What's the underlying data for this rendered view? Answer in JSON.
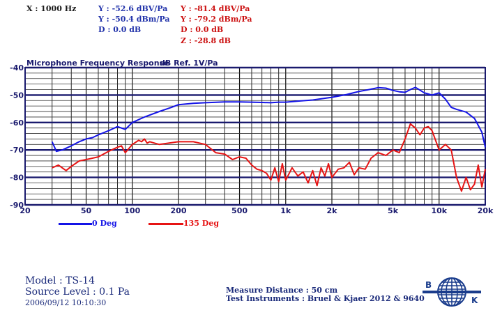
{
  "readouts": {
    "x": "X : 1000 Hz",
    "blue": [
      "Y : -52.6 dBV/Pa",
      "Y : -50.4 dBm/Pa",
      "D : 0.0 dB"
    ],
    "red": [
      "Y : -81.4 dBV/Pa",
      "Y : -79.2 dBm/Pa",
      "D : 0.0 dB",
      "Z : -28.8 dB"
    ]
  },
  "colors": {
    "blue": "#1414e6",
    "red": "#e61414",
    "frame": "#1a1a6e"
  },
  "chart_data": {
    "type": "line",
    "title": "Microphone Frequency Response",
    "ylabel": "dB Ref. 1V/Pa",
    "xlabel": "",
    "xscale": "log",
    "xlim": [
      20,
      20000
    ],
    "ylim": [
      -90,
      -40
    ],
    "x_ticks": [
      20,
      50,
      100,
      200,
      500,
      1000,
      2000,
      5000,
      10000,
      20000
    ],
    "x_tick_labels": [
      "20",
      "50",
      "100",
      "200",
      "500",
      "1k",
      "2k",
      "5k",
      "10k",
      "20k"
    ],
    "y_ticks": [
      -40,
      -50,
      -60,
      -70,
      -80,
      -90
    ],
    "y_tick_labels": [
      "-40",
      "-50",
      "-60",
      "-70",
      "-80",
      "-90"
    ],
    "grid": true,
    "legend_position": "bottom-left",
    "series": [
      {
        "name": "0 Deg",
        "color": "#1414e6",
        "x": [
          30,
          32,
          35,
          40,
          45,
          50,
          55,
          60,
          70,
          80,
          90,
          100,
          120,
          150,
          180,
          200,
          250,
          300,
          400,
          500,
          600,
          700,
          800,
          900,
          1000,
          1200,
          1500,
          2000,
          2500,
          3000,
          3500,
          4000,
          4500,
          5000,
          5500,
          6000,
          6500,
          7000,
          7500,
          8000,
          9000,
          10000,
          11000,
          12000,
          13000,
          15000,
          17000,
          19000,
          20000
        ],
        "y": [
          -67,
          -70.5,
          -70,
          -68.5,
          -67,
          -66,
          -65.5,
          -64.5,
          -63,
          -61.5,
          -62.5,
          -60,
          -58,
          -56,
          -54.5,
          -53.5,
          -53,
          -52.8,
          -52.5,
          -52.5,
          -52.6,
          -52.7,
          -52.8,
          -52.6,
          -52.6,
          -52.2,
          -51.8,
          -50.8,
          -49.8,
          -48.7,
          -48,
          -47.3,
          -47.5,
          -48.3,
          -48.8,
          -49,
          -48,
          -47.2,
          -48.2,
          -49.2,
          -50,
          -49.2,
          -51.5,
          -54.5,
          -55.2,
          -56.2,
          -58.5,
          -63.5,
          -69
        ]
      },
      {
        "name": "135 Deg",
        "color": "#e61414",
        "x": [
          30,
          33,
          37,
          40,
          45,
          50,
          60,
          70,
          80,
          85,
          90,
          100,
          110,
          115,
          120,
          125,
          130,
          150,
          200,
          250,
          300,
          350,
          400,
          450,
          500,
          550,
          600,
          650,
          700,
          750,
          800,
          850,
          900,
          950,
          1000,
          1100,
          1200,
          1300,
          1400,
          1500,
          1600,
          1700,
          1800,
          1900,
          2000,
          2200,
          2400,
          2600,
          2800,
          3000,
          3300,
          3600,
          4000,
          4500,
          5000,
          5500,
          6000,
          6500,
          7000,
          7500,
          8000,
          8500,
          9000,
          10000,
          11000,
          12000,
          13000,
          14000,
          15000,
          16000,
          17000,
          18000,
          19000,
          20000
        ],
        "y": [
          -76.5,
          -75.5,
          -77.5,
          -76,
          -74,
          -73.5,
          -72.5,
          -70.5,
          -69,
          -68.5,
          -71,
          -68,
          -66.5,
          -67,
          -66,
          -67.5,
          -67,
          -68,
          -67,
          -67,
          -68,
          -71,
          -71.5,
          -73.5,
          -72.5,
          -73,
          -75.5,
          -77,
          -77.5,
          -78.5,
          -81,
          -76.5,
          -81.5,
          -75,
          -81,
          -76.5,
          -79.5,
          -78,
          -82,
          -77.5,
          -83,
          -76.5,
          -79.5,
          -75,
          -80,
          -77,
          -76.5,
          -74.5,
          -79,
          -76.5,
          -77,
          -73,
          -71,
          -72,
          -70,
          -71,
          -66,
          -60.5,
          -62,
          -64.5,
          -62,
          -61.5,
          -63,
          -70,
          -68,
          -70,
          -80,
          -85,
          -80,
          -84.5,
          -82.5,
          -75.5,
          -83.5,
          -77
        ]
      }
    ]
  },
  "footer": {
    "model": "Model : TS-14",
    "source_level": "Source Level : 0.1 Pa",
    "datetime": "2006/09/12 10:10:30",
    "measure_distance": "Measure Distance : 50 cm",
    "instruments": "Test Instruments : Bruel & Kjaer 2012 & 9640",
    "logo_letters": [
      "B",
      "K"
    ]
  }
}
